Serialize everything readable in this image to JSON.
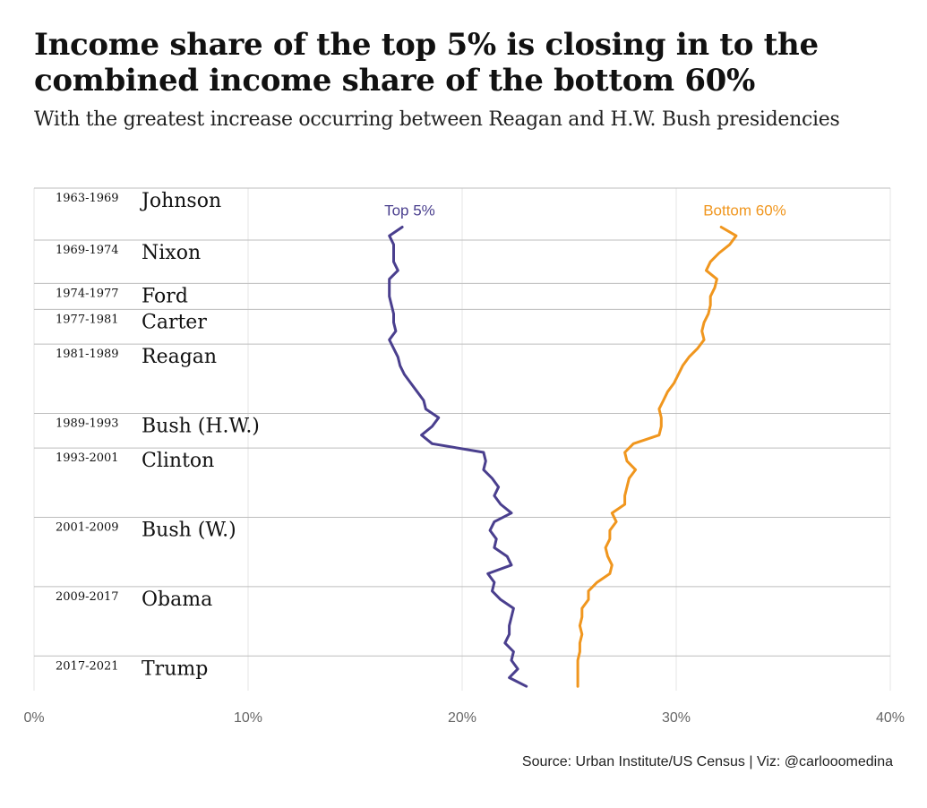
{
  "title": "Income share of the top 5% is closing in to the combined income share of the bottom 60%",
  "subtitle": "With the greatest increase occurring between Reagan and H.W. Bush presidencies",
  "source": "Source: Urban Institute/US Census | Viz: @carlooomedina",
  "chart_data": {
    "type": "line",
    "orientation": "horizontal-values-vertical-time",
    "x_axis": {
      "min": 0,
      "max": 40,
      "ticks": [
        {
          "value": 0,
          "label": "0%"
        },
        {
          "value": 10,
          "label": "10%"
        },
        {
          "value": 20,
          "label": "20%"
        },
        {
          "value": 30,
          "label": "30%"
        },
        {
          "value": 40,
          "label": "40%"
        }
      ]
    },
    "y_axis": {
      "min": 1963,
      "max": 2021,
      "direction": "down"
    },
    "grid": true,
    "legend": "direct labels at top of each line",
    "presidencies": [
      {
        "years": "1963-1969",
        "name": "Johnson",
        "start": 1963
      },
      {
        "years": "1969-1974",
        "name": "Nixon",
        "start": 1969
      },
      {
        "years": "1974-1977",
        "name": "Ford",
        "start": 1974
      },
      {
        "years": "1977-1981",
        "name": "Carter",
        "start": 1977
      },
      {
        "years": "1981-1989",
        "name": "Reagan",
        "start": 1981
      },
      {
        "years": "1989-1993",
        "name": "Bush (H.W.)",
        "start": 1989
      },
      {
        "years": "1993-2001",
        "name": "Clinton",
        "start": 1993
      },
      {
        "years": "2001-2009",
        "name": "Bush (W.)",
        "start": 2001
      },
      {
        "years": "2009-2017",
        "name": "Obama",
        "start": 2009
      },
      {
        "years": "2017-2021",
        "name": "Trump",
        "start": 2017
      }
    ],
    "series": [
      {
        "name": "Top 5%",
        "color": "#4a3f8e",
        "years": [
          1967,
          1968,
          1969,
          1970,
          1971,
          1972,
          1973,
          1974,
          1975,
          1976,
          1977,
          1978,
          1979,
          1980,
          1981,
          1982,
          1983,
          1984,
          1985,
          1986,
          1987,
          1988,
          1989,
          1990,
          1991,
          1992,
          1993,
          1994,
          1995,
          1996,
          1997,
          1998,
          1999,
          2000,
          2001,
          2002,
          2003,
          2004,
          2005,
          2006,
          2007,
          2008,
          2009,
          2010,
          2011,
          2012,
          2013,
          2014,
          2015,
          2016,
          2017,
          2018,
          2019,
          2020
        ],
        "values": [
          17.2,
          16.6,
          16.8,
          16.8,
          16.8,
          17.0,
          16.6,
          16.6,
          16.6,
          16.7,
          16.8,
          16.8,
          16.9,
          16.6,
          16.8,
          17.0,
          17.1,
          17.3,
          17.6,
          17.9,
          18.2,
          18.3,
          18.9,
          18.6,
          18.1,
          18.6,
          21.0,
          21.1,
          21.0,
          21.4,
          21.7,
          21.5,
          21.8,
          22.3,
          21.5,
          21.3,
          21.6,
          21.5,
          22.1,
          22.3,
          21.2,
          21.5,
          21.4,
          21.8,
          22.4,
          22.3,
          22.2,
          22.2,
          22.0,
          22.4,
          22.3,
          22.6,
          22.2,
          23.0
        ]
      },
      {
        "name": "Bottom 60%",
        "color": "#f0961e",
        "years": [
          1967,
          1968,
          1969,
          1970,
          1971,
          1972,
          1973,
          1974,
          1975,
          1976,
          1977,
          1978,
          1979,
          1980,
          1981,
          1982,
          1983,
          1984,
          1985,
          1986,
          1987,
          1988,
          1989,
          1990,
          1991,
          1992,
          1993,
          1994,
          1995,
          1996,
          1997,
          1998,
          1999,
          2000,
          2001,
          2002,
          2003,
          2004,
          2005,
          2006,
          2007,
          2008,
          2009,
          2010,
          2011,
          2012,
          2013,
          2014,
          2015,
          2016,
          2017,
          2018,
          2019,
          2020
        ],
        "values": [
          32.1,
          32.8,
          32.5,
          32.0,
          31.6,
          31.4,
          31.9,
          31.8,
          31.6,
          31.6,
          31.5,
          31.3,
          31.2,
          31.3,
          31.0,
          30.6,
          30.3,
          30.1,
          29.9,
          29.6,
          29.4,
          29.2,
          29.3,
          29.3,
          29.2,
          28.0,
          27.6,
          27.7,
          28.1,
          27.8,
          27.7,
          27.6,
          27.6,
          27.0,
          27.2,
          26.9,
          26.9,
          26.7,
          26.8,
          27.0,
          26.9,
          26.3,
          25.9,
          25.9,
          25.6,
          25.6,
          25.5,
          25.6,
          25.5,
          25.5,
          25.4,
          25.4,
          25.4,
          25.4
        ]
      }
    ]
  }
}
